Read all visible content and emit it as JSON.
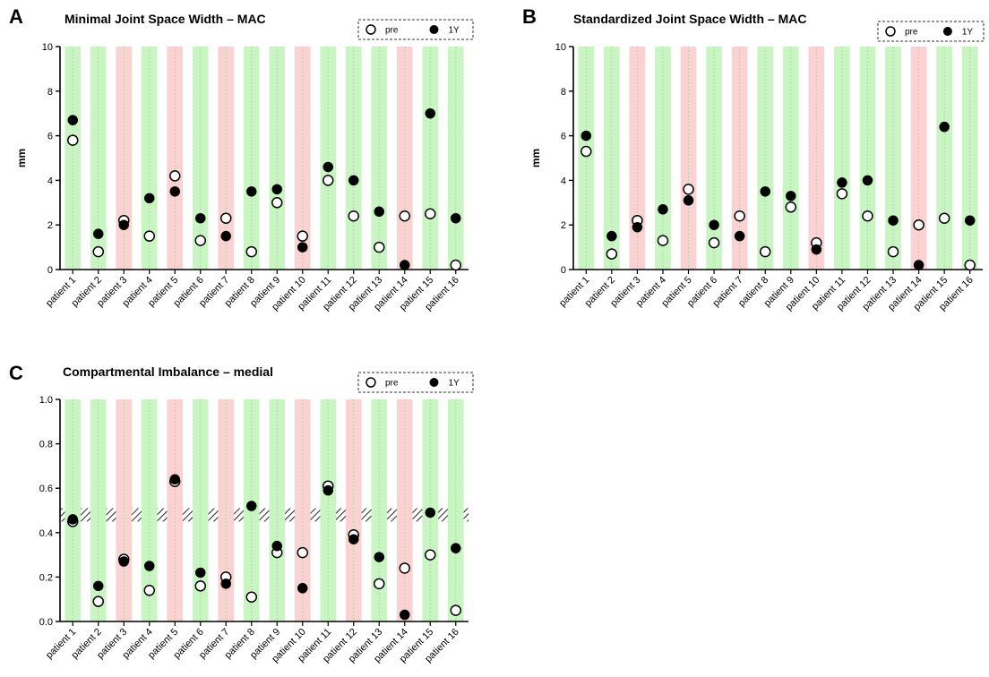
{
  "colors": {
    "improved_band": "#c9f5c3",
    "worsened_band": "#fad2d2",
    "band_center_line": "#9fd89a",
    "axis": "#000000",
    "marker": "#000000"
  },
  "legend": {
    "pre_label": "pre",
    "post_label": "1Y",
    "placement": "top-right, dashed box"
  },
  "chart_data": [
    {
      "panel": "A",
      "type": "scatter",
      "title": "Minimal Joint Space Width – MAC",
      "ylabel": "mm",
      "xlabel": "",
      "ylim": [
        0,
        10
      ],
      "yticks": [
        "0",
        "2",
        "4",
        "6",
        "8",
        "10"
      ],
      "categories": [
        "patient 1",
        "patient 2",
        "patient 3",
        "patient 4",
        "patient 5",
        "patient 6",
        "patient 7",
        "patient 8",
        "patient 9",
        "patient 10",
        "patient 11",
        "patient 12",
        "patient 13",
        "patient 14",
        "patient 15",
        "patient 16"
      ],
      "band_status": [
        "improved",
        "improved",
        "worsened",
        "improved",
        "worsened",
        "improved",
        "worsened",
        "improved",
        "improved",
        "worsened",
        "improved",
        "improved",
        "improved",
        "worsened",
        "improved",
        "improved"
      ],
      "series": [
        {
          "name": "pre",
          "marker": "open-circle",
          "values": [
            5.8,
            0.8,
            2.2,
            1.5,
            4.2,
            1.3,
            2.3,
            0.8,
            3.0,
            1.5,
            4.0,
            2.4,
            1.0,
            2.4,
            2.5,
            0.2
          ]
        },
        {
          "name": "1Y",
          "marker": "filled-circle",
          "values": [
            6.7,
            1.6,
            2.0,
            3.2,
            3.5,
            2.3,
            1.5,
            3.5,
            3.6,
            1.0,
            4.6,
            4.0,
            2.6,
            0.2,
            7.0,
            2.3
          ]
        }
      ]
    },
    {
      "panel": "B",
      "type": "scatter",
      "title": "Standardized Joint Space Width – MAC",
      "ylabel": "mm",
      "xlabel": "",
      "ylim": [
        0,
        10
      ],
      "yticks": [
        "0",
        "2",
        "4",
        "6",
        "8",
        "10"
      ],
      "categories": [
        "patient 1",
        "patient 2",
        "patient 3",
        "patient 4",
        "patient 5",
        "patient 6",
        "patient 7",
        "patient 8",
        "patient 9",
        "patient 10",
        "patient 11",
        "patient 12",
        "patient 13",
        "patient 14",
        "patient 15",
        "patient 16"
      ],
      "band_status": [
        "improved",
        "improved",
        "worsened",
        "improved",
        "worsened",
        "improved",
        "worsened",
        "improved",
        "improved",
        "worsened",
        "improved",
        "improved",
        "improved",
        "worsened",
        "improved",
        "improved"
      ],
      "series": [
        {
          "name": "pre",
          "marker": "open-circle",
          "values": [
            5.3,
            0.7,
            2.2,
            1.3,
            3.6,
            1.2,
            2.4,
            0.8,
            2.8,
            1.2,
            3.4,
            2.4,
            0.8,
            2.0,
            2.3,
            0.2
          ]
        },
        {
          "name": "1Y",
          "marker": "filled-circle",
          "values": [
            6.0,
            1.5,
            1.9,
            2.7,
            3.1,
            2.0,
            1.5,
            3.5,
            3.3,
            0.9,
            3.9,
            4.0,
            2.2,
            0.2,
            6.4,
            2.2
          ]
        }
      ]
    },
    {
      "panel": "C",
      "type": "scatter",
      "title": "Compartmental Imbalance – medial",
      "ylabel": "",
      "xlabel": "",
      "ylim": [
        0,
        1
      ],
      "yticks": [
        "0.0",
        "0.2",
        "0.4",
        "0.6",
        "0.8",
        "1.0"
      ],
      "reference_band": [
        0.45,
        0.51
      ],
      "categories": [
        "patient 1",
        "patient 2",
        "patient 3",
        "patient 4",
        "patient 5",
        "patient 6",
        "patient 7",
        "patient 8",
        "patient 9",
        "patient 10",
        "patient 11",
        "patient 12",
        "patient 13",
        "patient 14",
        "patient 15",
        "patient 16"
      ],
      "band_status": [
        "improved",
        "improved",
        "worsened",
        "improved",
        "worsened",
        "improved",
        "worsened",
        "improved",
        "improved",
        "worsened",
        "improved",
        "worsened",
        "improved",
        "worsened",
        "improved",
        "improved"
      ],
      "series": [
        {
          "name": "pre",
          "marker": "open-circle",
          "values": [
            0.45,
            0.09,
            0.28,
            0.14,
            0.63,
            0.16,
            0.2,
            0.11,
            0.31,
            0.31,
            0.61,
            0.39,
            0.17,
            0.24,
            0.3,
            0.05
          ]
        },
        {
          "name": "1Y",
          "marker": "filled-circle",
          "values": [
            0.46,
            0.16,
            0.27,
            0.25,
            0.64,
            0.22,
            0.17,
            0.52,
            0.34,
            0.15,
            0.59,
            0.37,
            0.29,
            0.03,
            0.49,
            0.33
          ]
        }
      ]
    }
  ]
}
